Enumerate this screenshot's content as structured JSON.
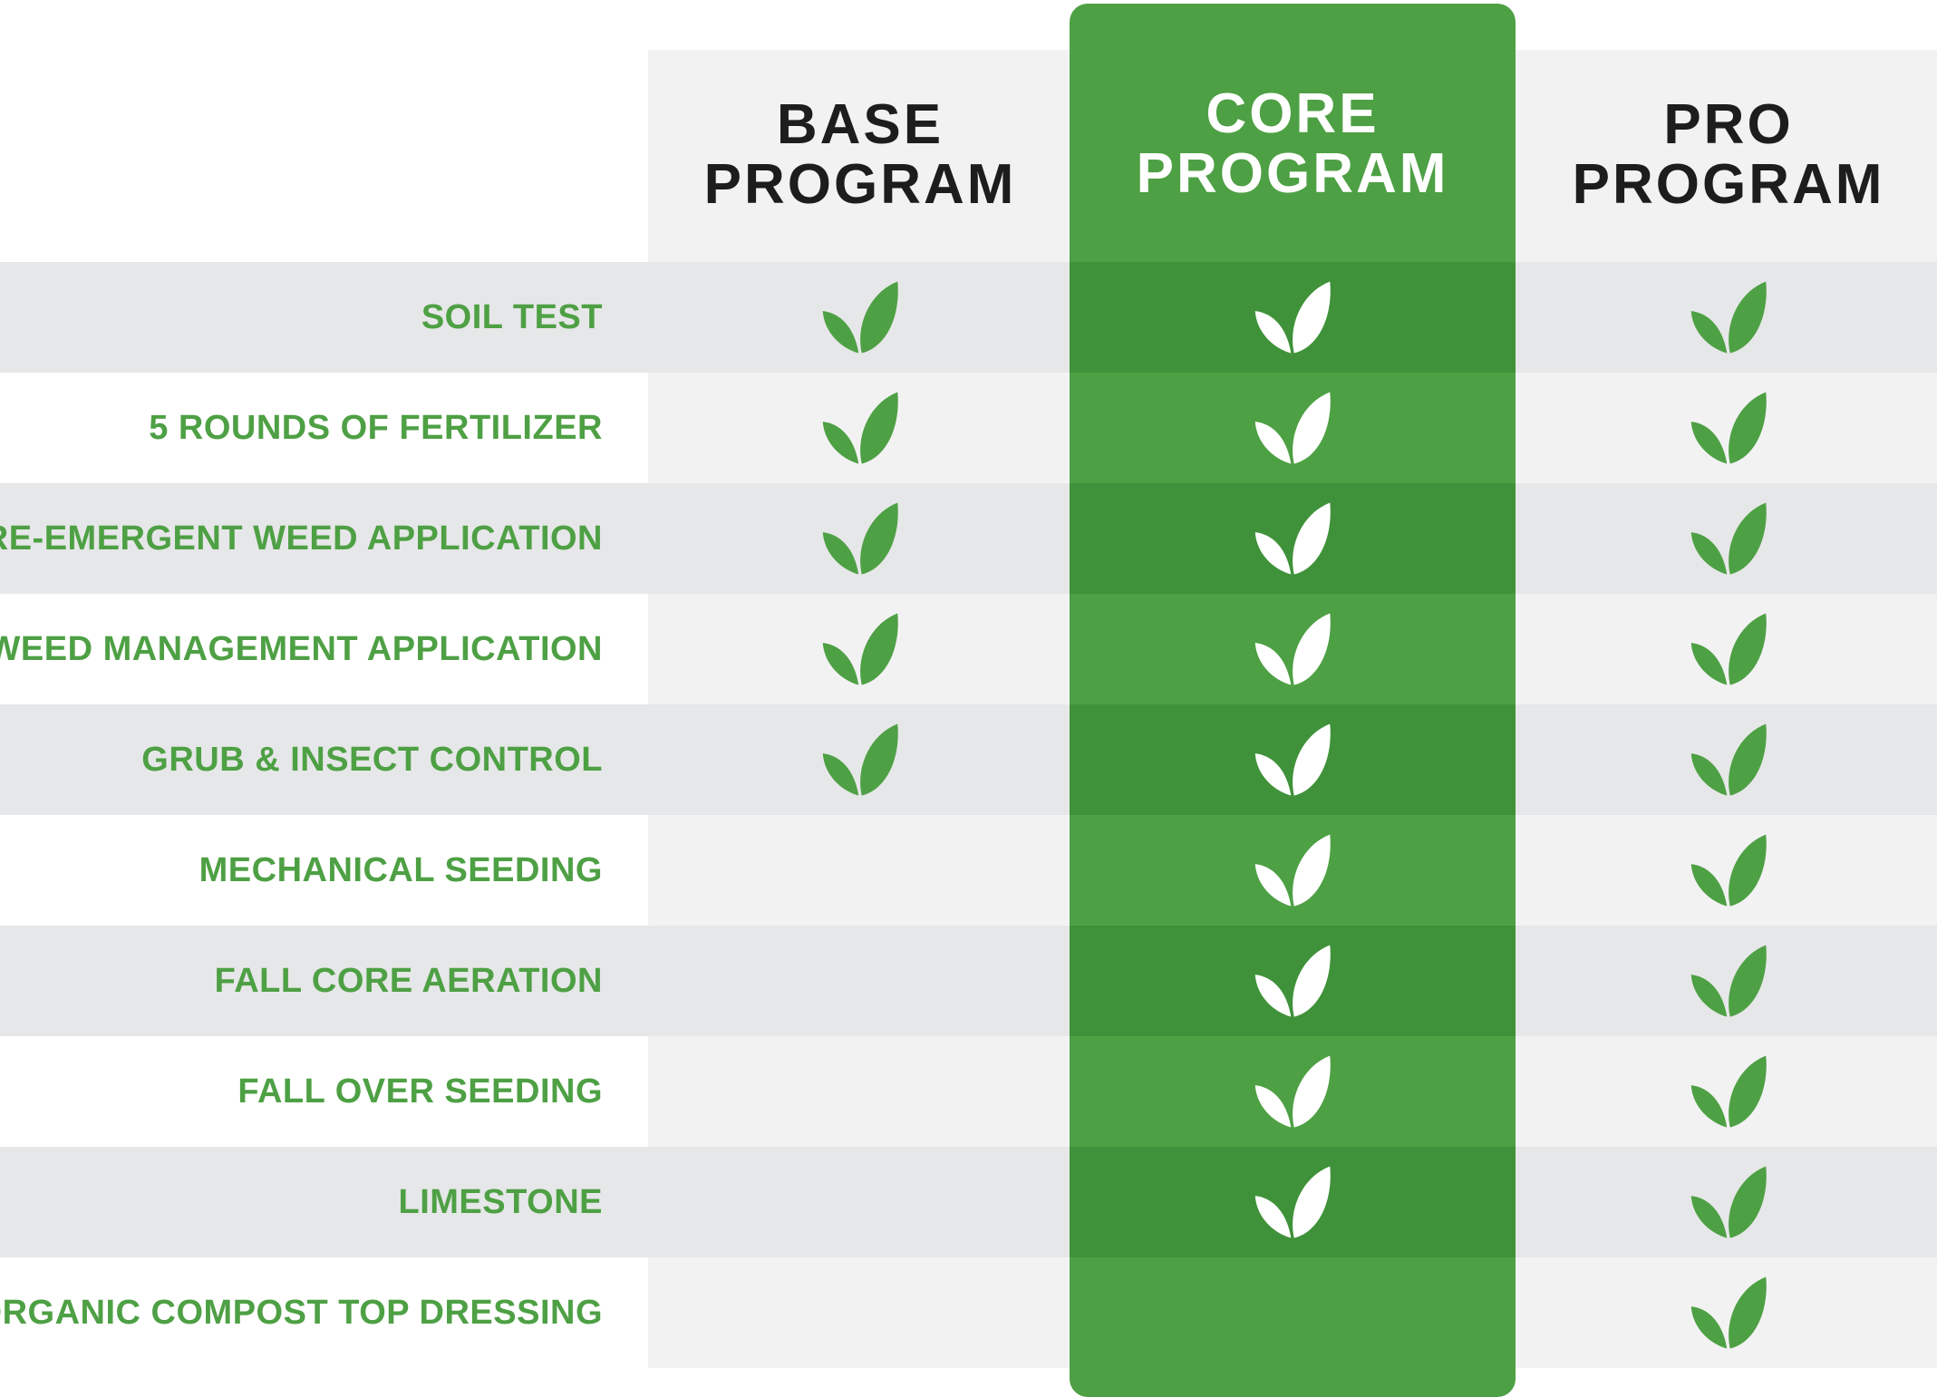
{
  "colors": {
    "accent_green": "#4ea044",
    "dark_band_green": "#3f9239",
    "row_light": "#f2f2f3",
    "row_dark": "#e6e7e8",
    "heading_text": "#1d1d1d"
  },
  "columns": [
    {
      "line1": "BASE",
      "line2": "PROGRAM",
      "highlight": false
    },
    {
      "line1": "CORE",
      "line2": "PROGRAM",
      "highlight": true
    },
    {
      "line1": "PRO",
      "line2": "PROGRAM",
      "highlight": false
    }
  ],
  "rows": [
    {
      "label": "SOIL TEST",
      "included": [
        true,
        true,
        true
      ]
    },
    {
      "label": "5 ROUNDS OF FERTILIZER",
      "included": [
        true,
        true,
        true
      ]
    },
    {
      "label": "PRE-EMERGENT WEED APPLICATION",
      "included": [
        true,
        true,
        true
      ]
    },
    {
      "label": "WEED MANAGEMENT APPLICATION",
      "included": [
        true,
        true,
        true
      ]
    },
    {
      "label": "GRUB & INSECT CONTROL",
      "included": [
        true,
        true,
        true
      ]
    },
    {
      "label": "MECHANICAL SEEDING",
      "included": [
        false,
        true,
        true
      ]
    },
    {
      "label": "FALL CORE AERATION",
      "included": [
        false,
        true,
        true
      ]
    },
    {
      "label": "FALL OVER SEEDING",
      "included": [
        false,
        true,
        true
      ]
    },
    {
      "label": "LIMESTONE",
      "included": [
        false,
        true,
        true
      ]
    },
    {
      "label": "ORGANIC COMPOST TOP DRESSING",
      "included": [
        false,
        false,
        true
      ]
    }
  ],
  "icon": "leaf-check-icon"
}
